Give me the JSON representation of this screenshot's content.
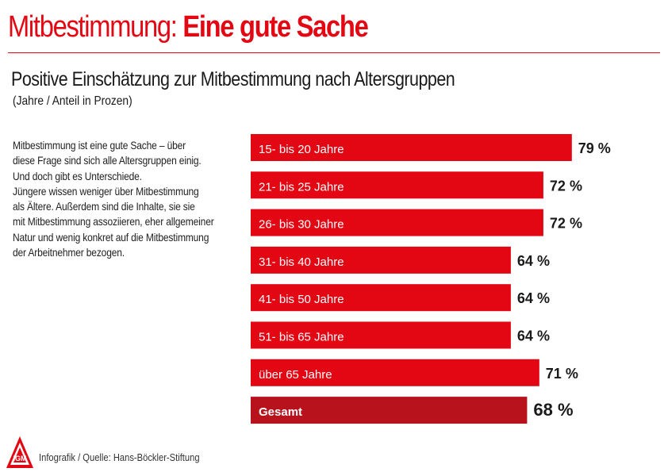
{
  "header": {
    "title_light": "Mitbestimmung:",
    "title_bold": "Eine gute Sache"
  },
  "subtitle": "Positive Einschätzung zur Mitbestimmung nach Altersgruppen",
  "subnote": "(Jahre / Anteil in Prozen)",
  "body_lines": [
    "Mitbestimmung ist eine gute Sache – über",
    "diese Frage sind sich alle Altersgruppen einig.",
    "Und doch gibt es Unterschiede.",
    "Jüngere wissen weniger über Mitbestimmung",
    "als Ältere. Außerdem sind die Inhalte, sie sie",
    "mit Mitbestimmung assoziieren, eher allgemeiner",
    "Natur und wenig konkret auf die Mitbestimmung",
    "der Arbeitnehmer bezogen."
  ],
  "footer": "Infografik / Quelle: Hans-Böckler-Stiftung",
  "logo_text": "IGM",
  "colors": {
    "accent": "#e30613",
    "total_bar": "#b8121c",
    "text": "#1a1a1a"
  },
  "chart_data": {
    "type": "bar",
    "orientation": "horizontal",
    "categories": [
      "15- bis 20 Jahre",
      "21- bis 25 Jahre",
      "26- bis 30 Jahre",
      "31- bis 40 Jahre",
      "41- bis 50 Jahre",
      "51- bis 65 Jahre",
      "über 65 Jahre",
      "Gesamt"
    ],
    "values": [
      79,
      72,
      72,
      64,
      64,
      64,
      71,
      68
    ],
    "value_labels": [
      "79 %",
      "72 %",
      "72 %",
      "64 %",
      "64 %",
      "64 %",
      "71 %",
      "68 %"
    ],
    "highlight": "Gesamt",
    "grid": false,
    "legend": "none"
  }
}
